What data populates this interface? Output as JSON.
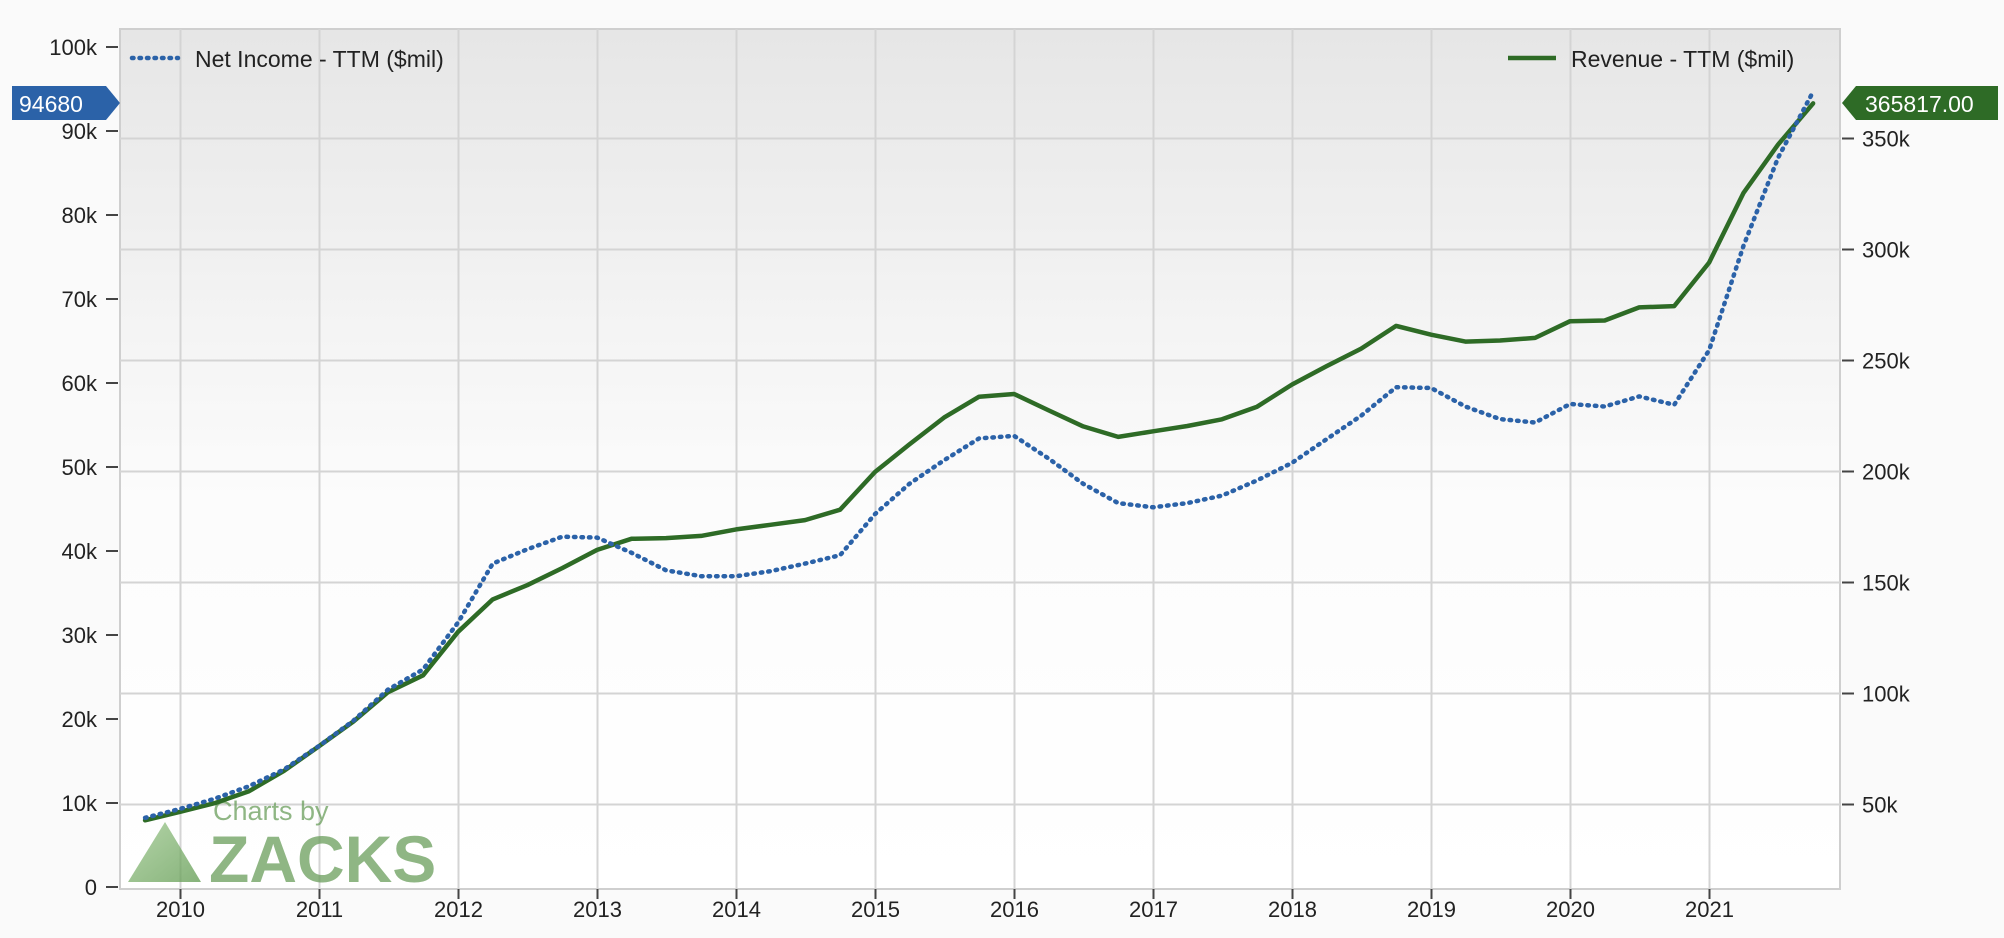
{
  "colors": {
    "net_income": "#2b62a8",
    "revenue": "#2e6b26",
    "grid": "#d4d4d4",
    "watermark": "#6a9e5c"
  },
  "legend": {
    "net_income": "Net Income - TTM ($mil)",
    "revenue": "Revenue - TTM ($mil)"
  },
  "flags": {
    "left_value": "94680",
    "right_value": "365817.00"
  },
  "watermark": {
    "line1": "Charts by",
    "line2": "ZACKS"
  },
  "chart_data": {
    "type": "line",
    "x_ticks": [
      "2010",
      "2011",
      "2012",
      "2013",
      "2014",
      "2015",
      "2016",
      "2017",
      "2018",
      "2019",
      "2020",
      "2021"
    ],
    "left_axis": {
      "ylim": [
        0,
        100000
      ],
      "ticks": [
        {
          "value": 0,
          "label": "0"
        },
        {
          "value": 10000,
          "label": "10k"
        },
        {
          "value": 20000,
          "label": "20k"
        },
        {
          "value": 30000,
          "label": "30k"
        },
        {
          "value": 40000,
          "label": "40k"
        },
        {
          "value": 50000,
          "label": "50k"
        },
        {
          "value": 60000,
          "label": "60k"
        },
        {
          "value": 70000,
          "label": "70k"
        },
        {
          "value": 80000,
          "label": "80k"
        },
        {
          "value": 90000,
          "label": "90k"
        },
        {
          "value": 100000,
          "label": "100k"
        }
      ]
    },
    "right_axis": {
      "ylim": [
        0,
        375000
      ],
      "ticks": [
        {
          "value": 50000,
          "label": "50k"
        },
        {
          "value": 100000,
          "label": "100k"
        },
        {
          "value": 150000,
          "label": "150k"
        },
        {
          "value": 200000,
          "label": "200k"
        },
        {
          "value": 250000,
          "label": "250k"
        },
        {
          "value": 300000,
          "label": "300k"
        },
        {
          "value": 350000,
          "label": "350k"
        }
      ]
    },
    "grid": true,
    "legend_placement": "top",
    "series": [
      {
        "name": "Net Income - TTM ($mil)",
        "axis": "left",
        "style": "dotted",
        "points": [
          [
            "2009-09-30",
            8235
          ],
          [
            "2009-12-31",
            9300
          ],
          [
            "2010-03-31",
            10500
          ],
          [
            "2010-06-30",
            12000
          ],
          [
            "2010-09-30",
            14000
          ],
          [
            "2010-12-31",
            16800
          ],
          [
            "2011-03-31",
            19800
          ],
          [
            "2011-06-30",
            23500
          ],
          [
            "2011-09-30",
            25900
          ],
          [
            "2011-12-31",
            31500
          ],
          [
            "2012-03-31",
            38500
          ],
          [
            "2012-06-30",
            40200
          ],
          [
            "2012-09-30",
            41700
          ],
          [
            "2012-12-31",
            41600
          ],
          [
            "2013-03-31",
            39800
          ],
          [
            "2013-06-30",
            37700
          ],
          [
            "2013-09-30",
            37000
          ],
          [
            "2013-12-31",
            37000
          ],
          [
            "2014-03-31",
            37600
          ],
          [
            "2014-06-30",
            38500
          ],
          [
            "2014-09-30",
            39500
          ],
          [
            "2014-12-31",
            44400
          ],
          [
            "2015-03-31",
            48000
          ],
          [
            "2015-06-30",
            50800
          ],
          [
            "2015-09-30",
            53400
          ],
          [
            "2015-12-31",
            53700
          ],
          [
            "2016-03-31",
            51000
          ],
          [
            "2016-06-30",
            48000
          ],
          [
            "2016-09-30",
            45700
          ],
          [
            "2016-12-31",
            45200
          ],
          [
            "2017-03-31",
            45700
          ],
          [
            "2017-06-30",
            46600
          ],
          [
            "2017-09-30",
            48400
          ],
          [
            "2017-12-31",
            50500
          ],
          [
            "2018-03-31",
            53300
          ],
          [
            "2018-06-30",
            56100
          ],
          [
            "2018-09-30",
            59500
          ],
          [
            "2018-12-31",
            59400
          ],
          [
            "2019-03-31",
            57200
          ],
          [
            "2019-06-30",
            55700
          ],
          [
            "2019-09-30",
            55300
          ],
          [
            "2019-12-31",
            57500
          ],
          [
            "2020-03-31",
            57200
          ],
          [
            "2020-06-30",
            58400
          ],
          [
            "2020-09-30",
            57400
          ],
          [
            "2020-12-31",
            63900
          ],
          [
            "2021-03-31",
            76300
          ],
          [
            "2021-06-30",
            86800
          ],
          [
            "2021-09-30",
            94680
          ]
        ]
      },
      {
        "name": "Revenue - TTM ($mil)",
        "axis": "right",
        "style": "solid",
        "points": [
          [
            "2009-09-30",
            42900
          ],
          [
            "2009-12-31",
            46700
          ],
          [
            "2010-03-31",
            50600
          ],
          [
            "2010-06-30",
            56000
          ],
          [
            "2010-09-30",
            65200
          ],
          [
            "2010-12-31",
            76300
          ],
          [
            "2011-03-31",
            87400
          ],
          [
            "2011-06-30",
            100600
          ],
          [
            "2011-09-30",
            108200
          ],
          [
            "2011-12-31",
            127800
          ],
          [
            "2012-03-31",
            142400
          ],
          [
            "2012-06-30",
            148800
          ],
          [
            "2012-09-30",
            156500
          ],
          [
            "2012-12-31",
            164700
          ],
          [
            "2013-03-31",
            169700
          ],
          [
            "2013-06-30",
            170000
          ],
          [
            "2013-09-30",
            171000
          ],
          [
            "2013-12-31",
            173900
          ],
          [
            "2014-03-31",
            176000
          ],
          [
            "2014-06-30",
            178100
          ],
          [
            "2014-09-30",
            182800
          ],
          [
            "2014-12-31",
            199800
          ],
          [
            "2015-03-31",
            212200
          ],
          [
            "2015-06-30",
            224300
          ],
          [
            "2015-09-30",
            233700
          ],
          [
            "2015-12-31",
            234900
          ],
          [
            "2016-03-31",
            227500
          ],
          [
            "2016-06-30",
            220300
          ],
          [
            "2016-09-30",
            215600
          ],
          [
            "2016-12-31",
            218100
          ],
          [
            "2017-03-31",
            220500
          ],
          [
            "2017-06-30",
            223500
          ],
          [
            "2017-09-30",
            229200
          ],
          [
            "2017-12-31",
            239200
          ],
          [
            "2018-03-31",
            247400
          ],
          [
            "2018-06-30",
            255300
          ],
          [
            "2018-09-30",
            265600
          ],
          [
            "2018-12-31",
            261600
          ],
          [
            "2019-03-31",
            258500
          ],
          [
            "2019-06-30",
            259000
          ],
          [
            "2019-09-30",
            260200
          ],
          [
            "2019-12-31",
            267700
          ],
          [
            "2020-03-31",
            268000
          ],
          [
            "2020-06-30",
            273900
          ],
          [
            "2020-09-30",
            274500
          ],
          [
            "2020-12-31",
            294100
          ],
          [
            "2021-03-31",
            325400
          ],
          [
            "2021-06-30",
            347200
          ],
          [
            "2021-09-30",
            365817
          ]
        ]
      }
    ]
  }
}
